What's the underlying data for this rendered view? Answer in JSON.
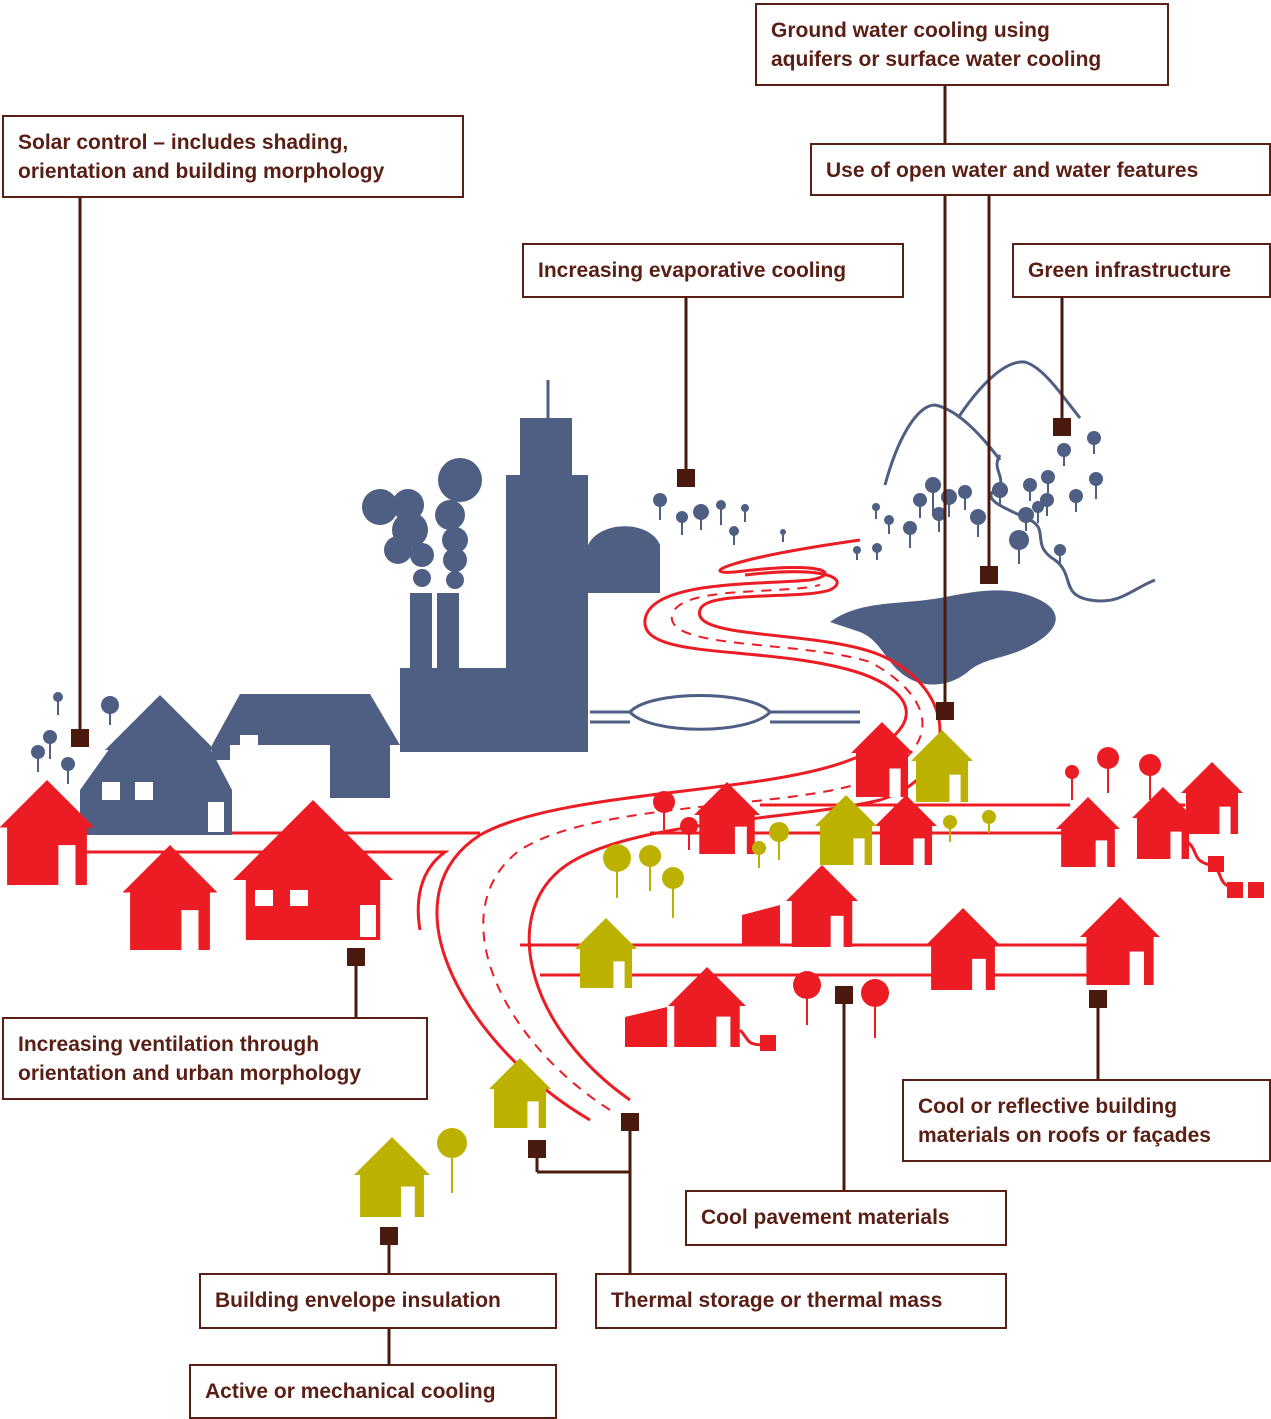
{
  "labels": [
    {
      "lines": [
        "Ground water cooling using",
        "aquifers or surface water cooling"
      ]
    },
    {
      "lines": [
        "Solar control – includes shading,",
        "orientation and building morphology"
      ]
    },
    {
      "lines": [
        "Use of open water and water features"
      ]
    },
    {
      "lines": [
        "Increasing evaporative cooling"
      ]
    },
    {
      "lines": [
        "Green infrastructure"
      ]
    },
    {
      "lines": [
        "Increasing ventilation through",
        "orientation and urban morphology"
      ]
    },
    {
      "lines": [
        "Cool or reflective building",
        "materials on roofs or façades"
      ]
    },
    {
      "lines": [
        "Cool pavement materials"
      ]
    },
    {
      "lines": [
        "Building envelope insulation"
      ]
    },
    {
      "lines": [
        "Thermal storage or thermal mass"
      ]
    },
    {
      "lines": [
        "Active or mechanical cooling"
      ]
    }
  ]
}
